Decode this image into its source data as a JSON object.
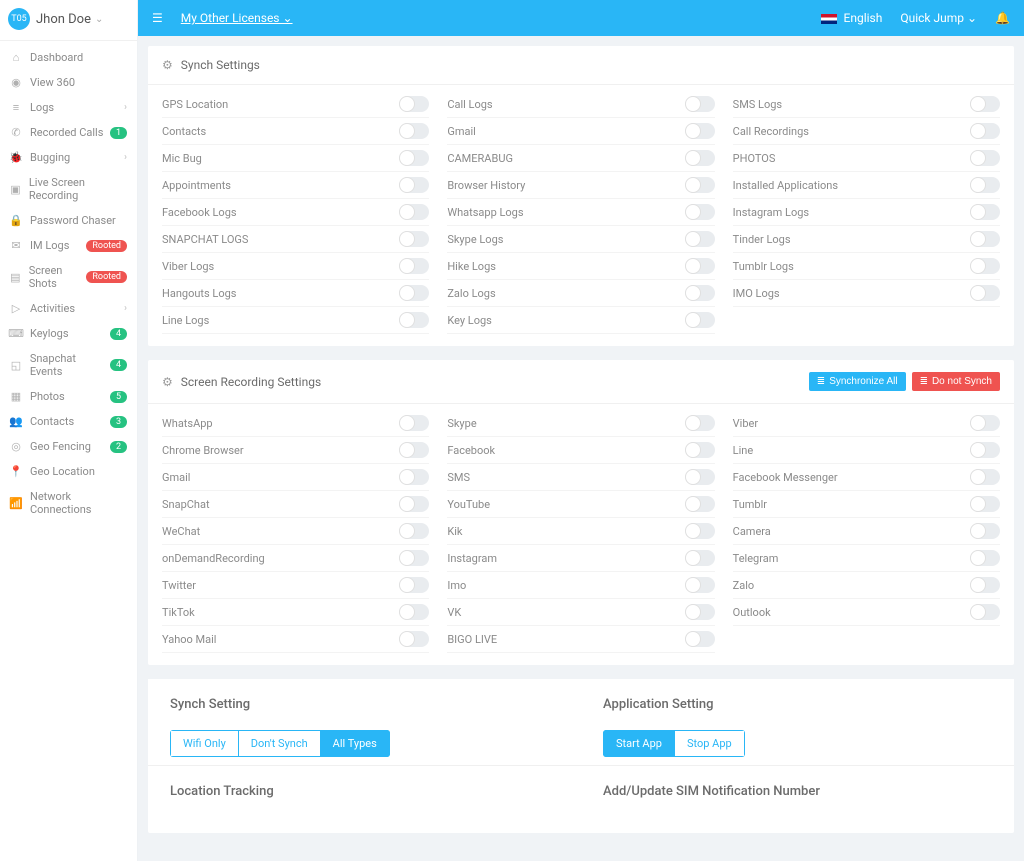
{
  "colors": {
    "primary": "#29b6f6",
    "danger": "#ef5350",
    "success": "#26c281",
    "text_muted": "#8a8a8a",
    "background": "#f0f3f6",
    "panel_bg": "#ffffff",
    "border": "#f0f0f0"
  },
  "user": {
    "avatar_text": "T05",
    "name": "Jhon Doe"
  },
  "topbar": {
    "licenses_label": "My Other Licenses",
    "language_label": "English",
    "quick_jump_label": "Quick Jump"
  },
  "sidebar": {
    "items": [
      {
        "icon": "⌂",
        "label": "Dashboard"
      },
      {
        "icon": "◉",
        "label": "View 360"
      },
      {
        "icon": "≡",
        "label": "Logs",
        "arrow": true
      },
      {
        "icon": "✆",
        "label": "Recorded Calls",
        "badge": "1",
        "badge_color": "green"
      },
      {
        "icon": "🐞",
        "label": "Bugging",
        "arrow": true
      },
      {
        "icon": "▣",
        "label": "Live Screen Recording"
      },
      {
        "icon": "🔒",
        "label": "Password Chaser"
      },
      {
        "icon": "✉",
        "label": "IM Logs",
        "badge": "Rooted",
        "badge_color": "red"
      },
      {
        "icon": "▤",
        "label": "Screen Shots",
        "badge": "Rooted",
        "badge_color": "red"
      },
      {
        "icon": "▷",
        "label": "Activities",
        "arrow": true
      },
      {
        "icon": "⌨",
        "label": "Keylogs",
        "badge": "4",
        "badge_color": "green"
      },
      {
        "icon": "◱",
        "label": "Snapchat Events",
        "badge": "4",
        "badge_color": "green"
      },
      {
        "icon": "▦",
        "label": "Photos",
        "badge": "5",
        "badge_color": "green"
      },
      {
        "icon": "👥",
        "label": "Contacts",
        "badge": "3",
        "badge_color": "green"
      },
      {
        "icon": "◎",
        "label": "Geo Fencing",
        "badge": "2",
        "badge_color": "green"
      },
      {
        "icon": "📍",
        "label": "Geo Location"
      },
      {
        "icon": "📶",
        "label": "Network Connections"
      }
    ]
  },
  "synch_panel": {
    "title": "Synch Settings",
    "cols": [
      [
        "GPS Location",
        "Contacts",
        "Mic Bug",
        "Appointments",
        "Facebook Logs",
        "SNAPCHAT LOGS",
        "Viber Logs",
        "Hangouts Logs",
        "Line Logs"
      ],
      [
        "Call Logs",
        "Gmail",
        "CAMERABUG",
        "Browser History",
        "Whatsapp Logs",
        "Skype Logs",
        "Hike Logs",
        "Zalo Logs",
        "Key Logs"
      ],
      [
        "SMS Logs",
        "Call Recordings",
        "PHOTOS",
        "Installed Applications",
        "Instagram Logs",
        "Tinder Logs",
        "Tumblr Logs",
        "IMO Logs"
      ]
    ]
  },
  "screen_panel": {
    "title": "Screen Recording Settings",
    "sync_all_label": "Synchronize All",
    "dont_sync_label": "Do not Synch",
    "cols": [
      [
        "WhatsApp",
        "Chrome Browser",
        "Gmail",
        "SnapChat",
        "WeChat",
        "onDemandRecording",
        "Twitter",
        "TikTok",
        "Yahoo Mail"
      ],
      [
        "Skype",
        "Facebook",
        "SMS",
        "YouTube",
        "Kik",
        "Instagram",
        "Imo",
        "VK",
        "BIGO LIVE"
      ],
      [
        "Viber",
        "Line",
        "Facebook Messenger",
        "Tumblr",
        "Camera",
        "Telegram",
        "Zalo",
        "Outlook"
      ]
    ]
  },
  "bottom": {
    "synch_setting_title": "Synch Setting",
    "application_setting_title": "Application Setting",
    "wifi_only": "Wifi Only",
    "dont_synch": "Don't Synch",
    "all_types": "All Types",
    "start_app": "Start App",
    "stop_app": "Stop App",
    "location_tracking_title": "Location Tracking",
    "sim_title": "Add/Update SIM Notification Number"
  }
}
